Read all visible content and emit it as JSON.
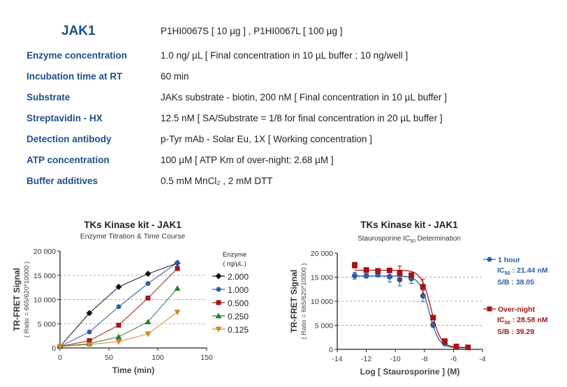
{
  "header": {
    "title": "JAK1",
    "catalog": "P1HI0067S [ 10 µg ] , P1HI0067L [ 100 µg ]"
  },
  "conditions": [
    {
      "label": "Enzyme concentration",
      "value": "1.0 ng/ µL    [ Final concentration in 10 µL buffer ; 10 ng/well ]"
    },
    {
      "label": "Incubation time at RT",
      "value": "60 min"
    },
    {
      "label": "Substrate",
      "value": "JAKs substrate - biotin, 200 nM    [ Final concentration in 10 µL buffer ]"
    },
    {
      "label": "Streptavidin - HX",
      "value": "12.5 nM    [ SA/Substrate = 1/8 for final concentration in 20 µL buffer ]"
    },
    {
      "label": "Detection antibody",
      "value": "p-Tyr mAb - Solar Eu, 1X    [ Working concentration ]"
    },
    {
      "label": "ATP concentration",
      "value": "100 µM    [ ATP Km of over-night:  2.68 µM ]"
    },
    {
      "label": "Buffer additives",
      "value": "0.5 mM MnCl₂ , 2 mM DTT"
    }
  ],
  "chart_data": [
    {
      "type": "line",
      "title": "TKs Kinase kit  -  JAK1",
      "subtitle": "Enzyme Titration & Time Course",
      "xlabel": "Time  (min)",
      "ylabel": "TR-FRET Signal",
      "ylabel2": "( Ratio = 665/620*10000 )",
      "xlim": [
        0,
        150
      ],
      "ylim": [
        0,
        20000
      ],
      "xticks": [
        "0",
        "50",
        "100",
        "150"
      ],
      "xtick_values": [
        0,
        50,
        100,
        150
      ],
      "yticks": [
        "0",
        "5 000",
        "10 000",
        "15 000",
        "20 000"
      ],
      "ytick_values": [
        0,
        5000,
        10000,
        15000,
        20000
      ],
      "legend_title": "Enzyme",
      "legend_unit": "( ng/µL )",
      "legend_position": "right",
      "x": [
        0,
        30,
        60,
        90,
        120
      ],
      "series": [
        {
          "name": "2.000",
          "color": "#111111",
          "marker": "diamond",
          "values": [
            300,
            7200,
            12600,
            15300,
            17500
          ]
        },
        {
          "name": "1.000",
          "color": "#2b5ea7",
          "marker": "circle",
          "values": [
            300,
            3300,
            8500,
            13300,
            17600
          ]
        },
        {
          "name": "0.500",
          "color": "#a31515",
          "marker": "square",
          "values": [
            300,
            1500,
            4700,
            10300,
            16400
          ]
        },
        {
          "name": "0.250",
          "color": "#2e7d32",
          "marker": "triangle",
          "values": [
            300,
            900,
            2300,
            5400,
            12300
          ]
        },
        {
          "name": "0.125",
          "color": "#d2862a",
          "marker": "triangle-down",
          "values": [
            300,
            700,
            1300,
            2900,
            7400
          ]
        }
      ]
    },
    {
      "type": "scatter",
      "title": "TKs Kinase kit  -  JAK1",
      "subtitle": "Staurosporine IC",
      "subtitle_sub": "50",
      "subtitle_end": " Determination",
      "xlabel": "Log [ Staurosporine ]  (M)",
      "ylabel": "TR-FRET Signal",
      "ylabel2": "( Ratio = 665/620*10000 )",
      "xlim": [
        -14,
        -4
      ],
      "ylim": [
        0,
        20000
      ],
      "xticks": [
        "-14",
        "-12",
        "-10",
        "-8",
        "-6",
        "-4"
      ],
      "xtick_values": [
        -14,
        -12,
        -10,
        -8,
        -6,
        -4
      ],
      "yticks": [
        "0",
        "5 000",
        "10 000",
        "15 000",
        "20 000"
      ],
      "ytick_values": [
        0,
        5000,
        10000,
        15000,
        20000
      ],
      "legend_position": "right",
      "x": [
        -12.8,
        -12.0,
        -11.2,
        -10.4,
        -9.7,
        -8.9,
        -8.1,
        -7.4,
        -6.6,
        -5.8,
        -5.0
      ],
      "series": [
        {
          "name": "1 hour",
          "color": "#2b5ea7",
          "marker": "circle",
          "ic50_label": "IC",
          "ic50_sub": "50",
          "ic50_text": " : 21.44 nM",
          "sb_text": "S/B : 38.05",
          "values": [
            15300,
            15300,
            15500,
            15100,
            14500,
            14700,
            11100,
            5100,
            1200,
            400,
            400
          ],
          "errors": [
            700,
            500,
            300,
            1100,
            1300,
            1000,
            1200,
            600,
            200,
            100,
            100
          ],
          "fit": {
            "top": 15250,
            "bottom": 300,
            "log_ic50": -7.669,
            "hill": 1.3
          }
        },
        {
          "name": "Over-night",
          "color": "#a31515",
          "marker": "square",
          "ic50_label": "IC",
          "ic50_sub": "50",
          "ic50_text": " : 28.58 nM",
          "sb_text": "S/B : 39.29",
          "values": [
            17500,
            16500,
            16300,
            16400,
            15800,
            15400,
            13000,
            6600,
            1700,
            600,
            400
          ],
          "errors": [
            600,
            300,
            300,
            200,
            1500,
            500,
            1600,
            400,
            200,
            100,
            100
          ],
          "fit": {
            "top": 16450,
            "bottom": 400,
            "log_ic50": -7.544,
            "hill": 1.3
          }
        }
      ]
    }
  ]
}
